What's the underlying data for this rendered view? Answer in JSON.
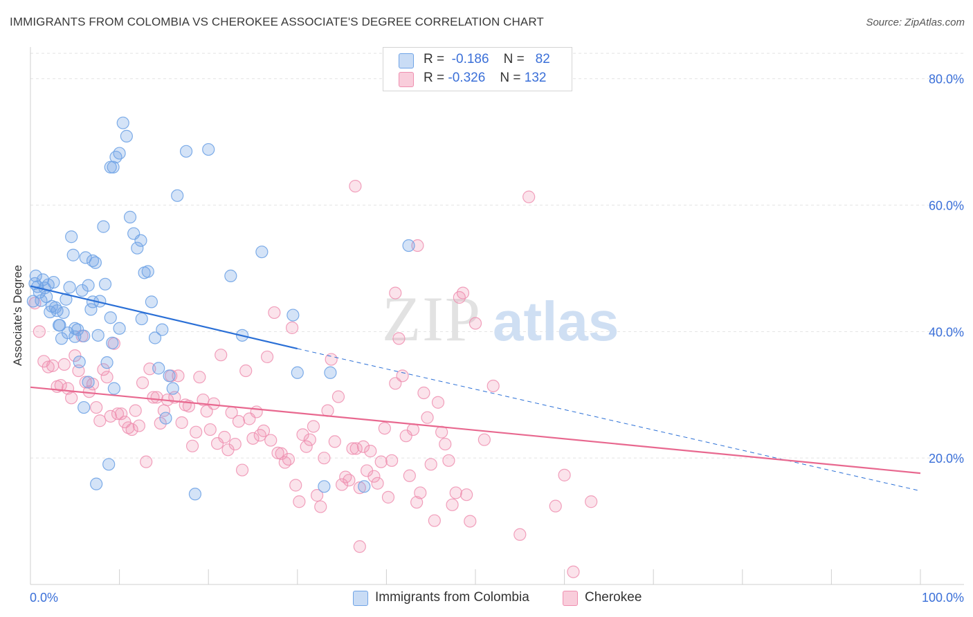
{
  "title": "IMMIGRANTS FROM COLOMBIA VS CHEROKEE ASSOCIATE'S DEGREE CORRELATION CHART",
  "source": "Source: ZipAtlas.com",
  "watermark": {
    "zip": "ZIP",
    "atlas": "atlas"
  },
  "legend": {
    "r_label": "R =",
    "n_label": "N =",
    "series": [
      {
        "r": "-0.186",
        "n": "82"
      },
      {
        "r": "-0.326",
        "n": "132"
      }
    ]
  },
  "chart_data": {
    "type": "scatter",
    "ylabel": "Associate's Degree",
    "xlim": [
      0,
      100
    ],
    "ylim": [
      0,
      85
    ],
    "x_tick_labels": [
      "0.0%",
      "100.0%"
    ],
    "y_ticks": [
      20,
      40,
      60,
      80
    ],
    "y_tick_labels": [
      "20.0%",
      "40.0%",
      "60.0%",
      "80.0%"
    ],
    "grid": true,
    "colors": {
      "colombia": "#6fa3e6",
      "cherokee": "#ef8fb0",
      "colombia_line": "#2a6fd6",
      "cherokee_line": "#e8688f",
      "tick_text": "#3a6fd8"
    },
    "series": [
      {
        "name": "Immigrants from Colombia",
        "trend": {
          "x": [
            0,
            30
          ],
          "y": [
            47.2,
            37.3
          ],
          "dashed_to": [
            100,
            14.8
          ]
        },
        "points": [
          [
            0.3,
            44.8
          ],
          [
            0.5,
            47.6
          ],
          [
            0.6,
            48.8
          ],
          [
            0.8,
            47.1
          ],
          [
            1.0,
            46.2
          ],
          [
            1.2,
            44.9
          ],
          [
            1.4,
            48.2
          ],
          [
            1.6,
            46.9
          ],
          [
            1.8,
            45.5
          ],
          [
            2.0,
            47.4
          ],
          [
            2.2,
            43.1
          ],
          [
            2.4,
            44.0
          ],
          [
            2.6,
            47.8
          ],
          [
            2.8,
            43.8
          ],
          [
            3.0,
            43.3
          ],
          [
            3.2,
            41.0
          ],
          [
            3.5,
            38.9
          ],
          [
            3.7,
            43.0
          ],
          [
            4.0,
            45.1
          ],
          [
            4.2,
            39.8
          ],
          [
            4.4,
            47.0
          ],
          [
            4.6,
            55.0
          ],
          [
            4.8,
            52.1
          ],
          [
            5.0,
            39.2
          ],
          [
            5.3,
            40.3
          ],
          [
            5.5,
            35.2
          ],
          [
            5.8,
            46.5
          ],
          [
            6.0,
            39.3
          ],
          [
            6.2,
            51.7
          ],
          [
            6.5,
            47.3
          ],
          [
            6.8,
            43.5
          ],
          [
            7.0,
            44.7
          ],
          [
            7.3,
            50.9
          ],
          [
            7.6,
            39.4
          ],
          [
            7.8,
            44.8
          ],
          [
            7.4,
            15.9
          ],
          [
            8.2,
            56.6
          ],
          [
            8.4,
            47.5
          ],
          [
            8.6,
            35.1
          ],
          [
            8.8,
            19.0
          ],
          [
            9.0,
            42.2
          ],
          [
            9.2,
            38.2
          ],
          [
            9.4,
            31.0
          ],
          [
            9.0,
            66.0
          ],
          [
            9.3,
            66.0
          ],
          [
            9.6,
            67.6
          ],
          [
            10.0,
            68.2
          ],
          [
            10.4,
            73.0
          ],
          [
            10.8,
            70.9
          ],
          [
            11.2,
            58.1
          ],
          [
            11.6,
            55.5
          ],
          [
            12.0,
            53.2
          ],
          [
            12.4,
            54.4
          ],
          [
            12.8,
            49.3
          ],
          [
            13.2,
            49.5
          ],
          [
            13.6,
            44.7
          ],
          [
            14.0,
            39.0
          ],
          [
            14.4,
            34.2
          ],
          [
            14.8,
            40.3
          ],
          [
            15.2,
            26.3
          ],
          [
            15.6,
            33.0
          ],
          [
            16.0,
            31.0
          ],
          [
            16.5,
            61.5
          ],
          [
            17.5,
            68.5
          ],
          [
            18.5,
            14.3
          ],
          [
            20.0,
            68.8
          ],
          [
            22.5,
            48.8
          ],
          [
            23.8,
            39.4
          ],
          [
            26.0,
            52.6
          ],
          [
            29.5,
            42.6
          ],
          [
            30.0,
            33.5
          ],
          [
            33.0,
            15.5
          ],
          [
            33.7,
            33.5
          ],
          [
            37.5,
            15.5
          ],
          [
            42.5,
            53.6
          ],
          [
            10.0,
            40.5
          ],
          [
            12.5,
            42.0
          ],
          [
            5.0,
            40.5
          ],
          [
            6.5,
            32.0
          ],
          [
            7.0,
            51.2
          ],
          [
            3.3,
            41.0
          ],
          [
            6.0,
            28.0
          ]
        ]
      },
      {
        "name": "Cherokee",
        "trend": {
          "x": [
            0,
            100
          ],
          "y": [
            31.2,
            17.6
          ]
        },
        "points": [
          [
            0.5,
            44.5
          ],
          [
            1.0,
            40.0
          ],
          [
            1.5,
            35.3
          ],
          [
            2.0,
            34.4
          ],
          [
            2.5,
            34.6
          ],
          [
            3.0,
            31.3
          ],
          [
            3.4,
            31.5
          ],
          [
            3.8,
            34.8
          ],
          [
            4.2,
            31.0
          ],
          [
            4.6,
            29.5
          ],
          [
            5.0,
            36.2
          ],
          [
            5.4,
            33.8
          ],
          [
            5.8,
            39.3
          ],
          [
            6.2,
            32.0
          ],
          [
            6.6,
            30.5
          ],
          [
            7.0,
            31.7
          ],
          [
            7.4,
            28.0
          ],
          [
            7.8,
            25.9
          ],
          [
            8.2,
            34.0
          ],
          [
            8.6,
            32.8
          ],
          [
            9.0,
            26.6
          ],
          [
            9.4,
            38.1
          ],
          [
            9.8,
            27.0
          ],
          [
            10.2,
            27.0
          ],
          [
            10.6,
            25.7
          ],
          [
            11.0,
            24.8
          ],
          [
            11.4,
            24.5
          ],
          [
            11.8,
            27.5
          ],
          [
            12.2,
            25.1
          ],
          [
            12.6,
            31.9
          ],
          [
            13.0,
            19.4
          ],
          [
            13.4,
            34.1
          ],
          [
            13.8,
            29.6
          ],
          [
            14.2,
            29.6
          ],
          [
            14.6,
            25.5
          ],
          [
            15.0,
            27.5
          ],
          [
            15.4,
            29.2
          ],
          [
            15.8,
            33.0
          ],
          [
            16.2,
            29.6
          ],
          [
            16.6,
            33.0
          ],
          [
            17.0,
            25.6
          ],
          [
            17.4,
            28.4
          ],
          [
            17.8,
            28.2
          ],
          [
            18.2,
            21.9
          ],
          [
            18.6,
            24.1
          ],
          [
            19.0,
            32.8
          ],
          [
            19.4,
            29.2
          ],
          [
            19.8,
            27.4
          ],
          [
            20.2,
            24.5
          ],
          [
            20.6,
            28.6
          ],
          [
            21.0,
            22.3
          ],
          [
            21.4,
            36.3
          ],
          [
            21.8,
            23.3
          ],
          [
            22.2,
            21.3
          ],
          [
            22.6,
            27.2
          ],
          [
            23.0,
            22.2
          ],
          [
            23.4,
            25.8
          ],
          [
            23.8,
            18.1
          ],
          [
            24.2,
            33.8
          ],
          [
            24.6,
            26.2
          ],
          [
            25.0,
            23.1
          ],
          [
            25.4,
            27.3
          ],
          [
            25.8,
            23.6
          ],
          [
            26.2,
            24.3
          ],
          [
            26.6,
            36.0
          ],
          [
            27.0,
            22.8
          ],
          [
            27.4,
            43.0
          ],
          [
            27.8,
            20.8
          ],
          [
            28.2,
            20.7
          ],
          [
            28.6,
            19.3
          ],
          [
            29.0,
            19.8
          ],
          [
            29.4,
            40.6
          ],
          [
            29.8,
            15.7
          ],
          [
            30.2,
            13.1
          ],
          [
            30.6,
            23.7
          ],
          [
            31.0,
            21.8
          ],
          [
            31.4,
            22.9
          ],
          [
            31.8,
            25.0
          ],
          [
            32.2,
            14.1
          ],
          [
            32.6,
            12.3
          ],
          [
            33.0,
            20.0
          ],
          [
            33.4,
            27.5
          ],
          [
            33.8,
            35.6
          ],
          [
            34.2,
            22.6
          ],
          [
            34.6,
            29.7
          ],
          [
            35.0,
            15.8
          ],
          [
            35.4,
            17.0
          ],
          [
            35.8,
            16.5
          ],
          [
            36.2,
            21.5
          ],
          [
            36.6,
            21.5
          ],
          [
            37.0,
            15.3
          ],
          [
            37.4,
            21.8
          ],
          [
            37.8,
            18.0
          ],
          [
            38.2,
            21.1
          ],
          [
            38.6,
            17.1
          ],
          [
            39.0,
            16.0
          ],
          [
            39.4,
            19.4
          ],
          [
            39.8,
            24.7
          ],
          [
            40.2,
            13.8
          ],
          [
            40.6,
            19.6
          ],
          [
            41.0,
            46.1
          ],
          [
            41.4,
            38.9
          ],
          [
            41.8,
            33.0
          ],
          [
            42.2,
            23.5
          ],
          [
            42.6,
            17.2
          ],
          [
            43.0,
            24.5
          ],
          [
            43.4,
            13.0
          ],
          [
            43.8,
            14.5
          ],
          [
            44.2,
            30.3
          ],
          [
            44.6,
            26.4
          ],
          [
            45.0,
            19.0
          ],
          [
            45.4,
            10.1
          ],
          [
            45.8,
            28.8
          ],
          [
            46.2,
            24.1
          ],
          [
            46.6,
            22.2
          ],
          [
            47.0,
            19.6
          ],
          [
            47.4,
            12.6
          ],
          [
            47.8,
            14.5
          ],
          [
            48.2,
            45.4
          ],
          [
            48.6,
            46.1
          ],
          [
            49.0,
            14.2
          ],
          [
            49.4,
            10.0
          ],
          [
            50.0,
            41.3
          ],
          [
            51.0,
            22.9
          ],
          [
            52.0,
            31.4
          ],
          [
            55.0,
            7.9
          ],
          [
            56.0,
            61.3
          ],
          [
            59.0,
            12.4
          ],
          [
            60.0,
            17.3
          ],
          [
            61.0,
            2.0
          ],
          [
            63.0,
            13.1
          ],
          [
            36.5,
            63.0
          ],
          [
            43.5,
            53.6
          ],
          [
            37.0,
            6.0
          ],
          [
            41.0,
            31.8
          ]
        ]
      }
    ]
  },
  "bottom_legend": [
    "Immigrants from Colombia",
    "Cherokee"
  ]
}
